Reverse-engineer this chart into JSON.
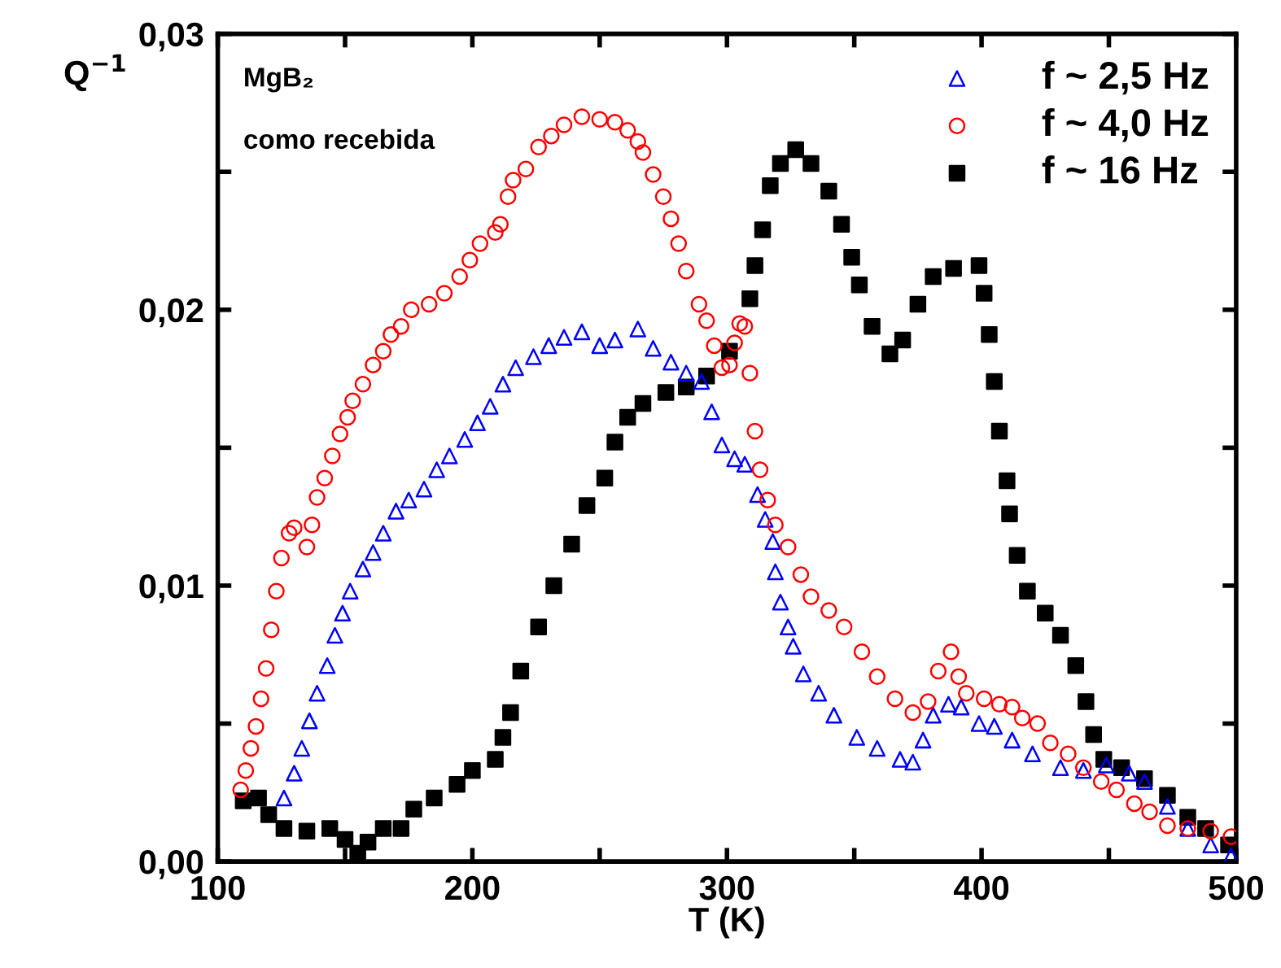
{
  "chart_data": {
    "type": "scatter",
    "xlabel": "T (K)",
    "ylabel": "Q$^{−1}$",
    "annotations": [
      "MgB₂",
      "como recebida"
    ],
    "xlim": [
      100,
      500
    ],
    "ylim": [
      0,
      0.03
    ],
    "xticks": [
      100,
      {
        "value": 150,
        "label": null
      },
      200,
      {
        "value": 250,
        "label": null
      },
      300,
      {
        "value": 350,
        "label": null
      },
      400,
      {
        "value": 450,
        "label": null
      },
      500
    ],
    "yticks": [
      {
        "value": 0,
        "label": "0,00"
      },
      {
        "value": 0.005,
        "label": null
      },
      {
        "value": 0.01,
        "label": "0,01"
      },
      {
        "value": 0.015,
        "label": null
      },
      {
        "value": 0.02,
        "label": "0,02"
      },
      {
        "value": 0.025,
        "label": null
      },
      {
        "value": 0.03,
        "label": "0,03"
      }
    ],
    "grid": false,
    "legend": "top right",
    "series": [
      {
        "name": "f ~ 2,5 Hz",
        "color": "#0000ff",
        "marker": "triangle",
        "x": [
          126,
          130,
          133,
          136,
          139,
          143,
          146,
          149,
          152,
          157,
          161,
          165,
          170,
          175,
          181,
          186,
          191,
          197,
          202,
          207,
          212,
          217,
          224,
          230,
          236,
          243,
          250,
          256,
          265,
          271,
          278,
          284,
          290,
          294,
          298,
          303,
          307,
          312,
          315,
          318,
          319,
          321,
          324,
          326,
          330,
          336,
          342,
          351,
          359,
          368,
          373,
          377,
          381,
          387,
          392,
          399,
          405,
          412,
          420,
          431,
          440,
          449,
          458,
          464,
          473,
          481,
          490,
          498
        ],
        "values": [
          0.0023,
          0.0032,
          0.0041,
          0.0051,
          0.0061,
          0.0071,
          0.0082,
          0.009,
          0.0098,
          0.0106,
          0.0112,
          0.0119,
          0.0127,
          0.0131,
          0.0135,
          0.0142,
          0.0147,
          0.0153,
          0.0159,
          0.0165,
          0.0173,
          0.0179,
          0.0183,
          0.0187,
          0.019,
          0.0192,
          0.0187,
          0.0189,
          0.0193,
          0.0186,
          0.0181,
          0.0177,
          0.0174,
          0.0163,
          0.0151,
          0.0146,
          0.0144,
          0.0133,
          0.0124,
          0.0116,
          0.0105,
          0.0094,
          0.0085,
          0.0078,
          0.0068,
          0.0061,
          0.0053,
          0.0045,
          0.0041,
          0.0037,
          0.0036,
          0.0044,
          0.0053,
          0.0057,
          0.0056,
          0.005,
          0.0049,
          0.0044,
          0.0039,
          0.0034,
          0.0033,
          0.0035,
          0.0032,
          0.0029,
          0.002,
          0.0012,
          0.0006,
          0.0002
        ]
      },
      {
        "name": "f ~ 4,0 Hz",
        "color": "#ff0000",
        "marker": "circle",
        "x": [
          109,
          111,
          113,
          115,
          117,
          119,
          121,
          123,
          125,
          128,
          130,
          135,
          137,
          139,
          142,
          145,
          148,
          151,
          153,
          157,
          161,
          165,
          168,
          172,
          176,
          183,
          189,
          195,
          199,
          203,
          209,
          211,
          214,
          216,
          221,
          226,
          231,
          236,
          243,
          250,
          256,
          261,
          265,
          267,
          271,
          275,
          278,
          281,
          284,
          289,
          292,
          295,
          298,
          301,
          303,
          305,
          307,
          309,
          311,
          313,
          316,
          319,
          324,
          329,
          333,
          340,
          346,
          353,
          359,
          366,
          373,
          379,
          383,
          388,
          391,
          394,
          401,
          407,
          412,
          416,
          422,
          427,
          434,
          440,
          447,
          453,
          460,
          466,
          473,
          481,
          490,
          498
        ],
        "values": [
          0.0026,
          0.0033,
          0.0041,
          0.0049,
          0.0059,
          0.007,
          0.0084,
          0.0098,
          0.011,
          0.0119,
          0.0121,
          0.0114,
          0.0122,
          0.0132,
          0.0139,
          0.0147,
          0.0155,
          0.0161,
          0.0167,
          0.0173,
          0.018,
          0.0185,
          0.0191,
          0.0194,
          0.02,
          0.0202,
          0.0206,
          0.0212,
          0.0218,
          0.0224,
          0.0228,
          0.0231,
          0.0241,
          0.0247,
          0.0251,
          0.0259,
          0.0263,
          0.0267,
          0.027,
          0.0269,
          0.0268,
          0.0265,
          0.0261,
          0.0257,
          0.0249,
          0.0241,
          0.0233,
          0.0224,
          0.0214,
          0.0202,
          0.0196,
          0.0187,
          0.0179,
          0.018,
          0.0188,
          0.0195,
          0.0194,
          0.0177,
          0.0156,
          0.0142,
          0.0131,
          0.0122,
          0.0114,
          0.0104,
          0.0096,
          0.0091,
          0.0085,
          0.0076,
          0.0067,
          0.0059,
          0.0054,
          0.0058,
          0.0069,
          0.0076,
          0.0067,
          0.0061,
          0.0059,
          0.0057,
          0.0056,
          0.0052,
          0.005,
          0.0043,
          0.0039,
          0.0034,
          0.0029,
          0.0026,
          0.0021,
          0.0018,
          0.0013,
          0.0012,
          0.0011,
          0.0009
        ]
      },
      {
        "name": "f ~ 16 Hz",
        "color": "#000000",
        "marker": "square",
        "x": [
          110,
          116,
          120,
          126,
          135,
          144,
          150,
          155,
          159,
          165,
          172,
          177,
          185,
          194,
          200,
          209,
          212,
          215,
          219,
          226,
          232,
          239,
          245,
          252,
          256,
          261,
          267,
          276,
          284,
          292,
          301,
          309,
          311,
          314,
          317,
          321,
          327,
          333,
          340,
          345,
          349,
          352,
          357,
          364,
          369,
          375,
          381,
          389,
          399,
          401,
          403,
          405,
          407,
          410,
          411,
          414,
          418,
          425,
          431,
          437,
          441,
          444,
          448,
          455,
          464,
          473,
          481,
          488,
          497
        ],
        "values": [
          0.0022,
          0.0023,
          0.0017,
          0.0012,
          0.0011,
          0.0012,
          0.0008,
          0.0003,
          0.0007,
          0.0012,
          0.0012,
          0.0019,
          0.0023,
          0.0028,
          0.0033,
          0.0037,
          0.0045,
          0.0054,
          0.0069,
          0.0085,
          0.01,
          0.0115,
          0.0129,
          0.0139,
          0.0152,
          0.0161,
          0.0166,
          0.017,
          0.0172,
          0.0176,
          0.0185,
          0.0204,
          0.0216,
          0.0229,
          0.0245,
          0.0253,
          0.0258,
          0.0253,
          0.0243,
          0.0231,
          0.0219,
          0.0209,
          0.0194,
          0.0184,
          0.0189,
          0.0202,
          0.0212,
          0.0215,
          0.0216,
          0.0206,
          0.0191,
          0.0174,
          0.0156,
          0.0138,
          0.0126,
          0.0111,
          0.0098,
          0.009,
          0.0082,
          0.0071,
          0.0058,
          0.0046,
          0.0037,
          0.0034,
          0.003,
          0.0024,
          0.0016,
          0.0012,
          0.0006
        ]
      }
    ]
  }
}
